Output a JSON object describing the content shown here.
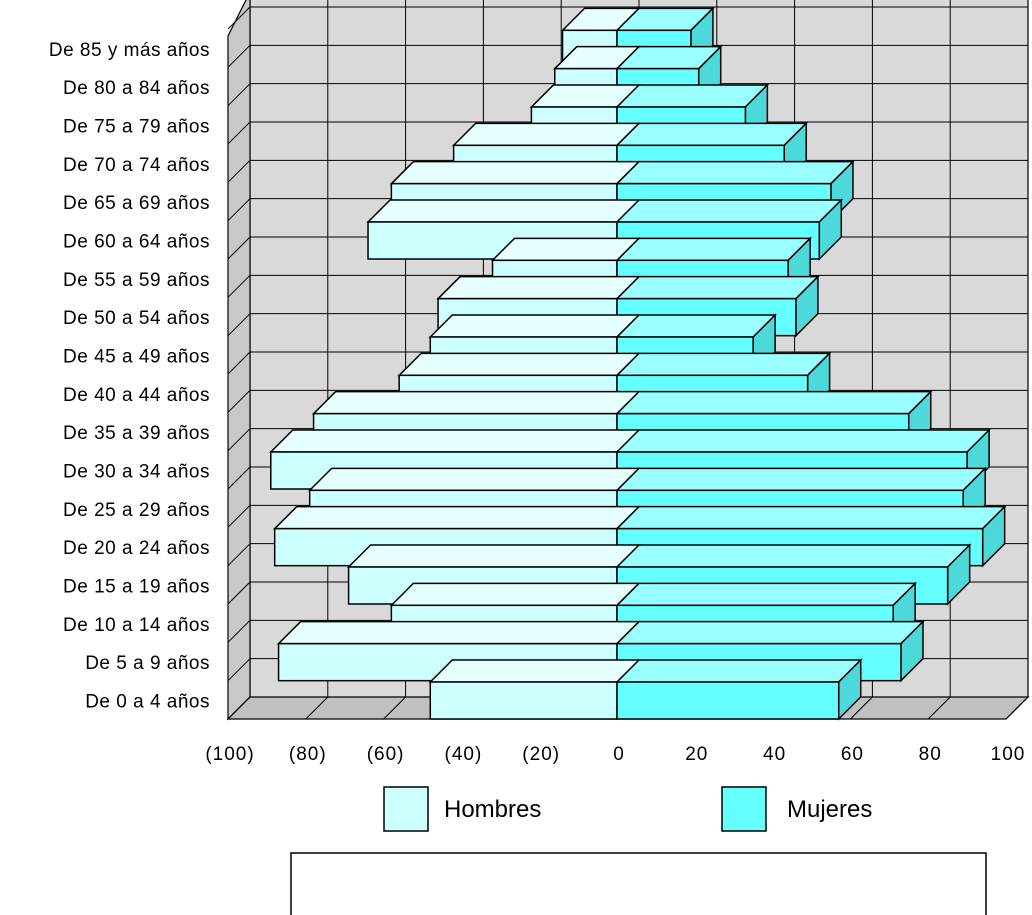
{
  "chart_data": {
    "type": "bar",
    "orientation": "horizontal",
    "style": "3d-population-pyramid",
    "categories": [
      "De 0 a 4 años",
      "De 5 a 9 años",
      "De 10 a 14 años",
      "De 15 a 19 años",
      "De 20 a 24 años",
      "De 25 a 29 años",
      "De 30 a 34 años",
      "De 35 a 39 años",
      "De 40 a 44 años",
      "De 45 a 49 años",
      "De 50 a 54 años",
      "De 55 a 59 años",
      "De 60 a 64 años",
      "De 65 a 69 años",
      "De 70 a 74 años",
      "De 75 a 79 años",
      "De 80 a 84 años",
      "De 85 y más años"
    ],
    "series": [
      {
        "name": "Hombres",
        "color": "#ccffff",
        "values": [
          -48,
          -87,
          -58,
          -69,
          -88,
          -79,
          -89,
          -78,
          -56,
          -48,
          -46,
          -32,
          -64,
          -58,
          -42,
          -22,
          -16,
          -14
        ]
      },
      {
        "name": "Mujeres",
        "color": "#66ffff",
        "values": [
          57,
          73,
          71,
          85,
          94,
          89,
          90,
          75,
          49,
          35,
          46,
          44,
          52,
          55,
          43,
          33,
          21,
          19
        ]
      }
    ],
    "xlim": [
      -100,
      100
    ],
    "x_ticks": [
      -100,
      -80,
      -60,
      -40,
      -20,
      0,
      20,
      40,
      60,
      80,
      100
    ],
    "x_tick_labels": [
      "(100)",
      "(80)",
      "(60)",
      "(40)",
      "(20)",
      "0",
      "20",
      "40",
      "60",
      "80",
      "100"
    ],
    "grid": true,
    "legend_position": "bottom",
    "legend": {
      "items": [
        "Hombres",
        "Mujeres"
      ]
    },
    "wall_color": "#d9d9d9"
  }
}
